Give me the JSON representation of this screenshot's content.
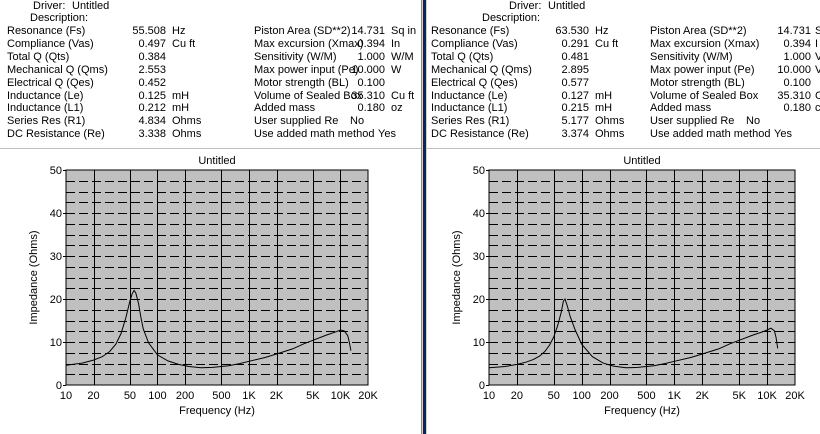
{
  "panes": [
    {
      "driver_label": "Driver:",
      "driver_value": "Untitled",
      "description_label": "Description:",
      "left_params": [
        {
          "label": "Resonance (Fs)",
          "value": "55.508",
          "unit": "Hz"
        },
        {
          "label": "Compliance (Vas)",
          "value": "0.497",
          "unit": "Cu ft"
        },
        {
          "label": "Total Q (Qts)",
          "value": "0.384",
          "unit": ""
        },
        {
          "label": "Mechanical Q (Qms)",
          "value": "2.553",
          "unit": ""
        },
        {
          "label": "Electrical Q (Qes)",
          "value": "0.452",
          "unit": ""
        },
        {
          "label": "Inductance (Le)",
          "value": "0.125",
          "unit": "mH"
        },
        {
          "label": "Inductance (L1)",
          "value": "0.212",
          "unit": "mH"
        },
        {
          "label": "Series Res (R1)",
          "value": "4.834",
          "unit": "Ohms"
        },
        {
          "label": "DC Resistance (Re)",
          "value": "3.338",
          "unit": "Ohms"
        }
      ],
      "right_params": [
        {
          "label": "Piston Area (SD**2)",
          "value": "14.731",
          "unit": "Sq in"
        },
        {
          "label": "Max excursion (Xmax)",
          "value": "0.394",
          "unit": "In"
        },
        {
          "label": "Sensitivity (W/M)",
          "value": "1.000",
          "unit": "W/M"
        },
        {
          "label": "Max power input (Pe)",
          "value": "10.000",
          "unit": "W"
        },
        {
          "label": "Motor strength (BL)",
          "value": "0.100",
          "unit": ""
        },
        {
          "label": "Volume of Sealed Box",
          "value": "35.310",
          "unit": "Cu ft"
        },
        {
          "label": "Added mass",
          "value": "0.180",
          "unit": "oz"
        },
        {
          "label": "User supplied Re",
          "value": "No",
          "unit": ""
        },
        {
          "label": "Use added math method",
          "value": "Yes",
          "unit": ""
        }
      ]
    },
    {
      "driver_label": "Driver:",
      "driver_value": "Untitled",
      "description_label": "Description:",
      "left_params": [
        {
          "label": "Resonance (Fs)",
          "value": "63.530",
          "unit": "Hz"
        },
        {
          "label": "Compliance (Vas)",
          "value": "0.291",
          "unit": "Cu ft"
        },
        {
          "label": "Total Q (Qts)",
          "value": "0.481",
          "unit": ""
        },
        {
          "label": "Mechanical Q (Qms)",
          "value": "2.895",
          "unit": ""
        },
        {
          "label": "Electrical Q (Qes)",
          "value": "0.577",
          "unit": ""
        },
        {
          "label": "Inductance (Le)",
          "value": "0.127",
          "unit": "mH"
        },
        {
          "label": "Inductance (L1)",
          "value": "0.215",
          "unit": "mH"
        },
        {
          "label": "Series Res (R1)",
          "value": "5.177",
          "unit": "Ohms"
        },
        {
          "label": "DC Resistance (Re)",
          "value": "3.374",
          "unit": "Ohms"
        }
      ],
      "right_params": [
        {
          "label": "Piston Area (SD**2)",
          "value": "14.731",
          "unit": "S"
        },
        {
          "label": "Max excursion (Xmax)",
          "value": "0.394",
          "unit": "I"
        },
        {
          "label": "Sensitivity (W/M)",
          "value": "1.000",
          "unit": "V"
        },
        {
          "label": "Max power input (Pe)",
          "value": "10.000",
          "unit": "V"
        },
        {
          "label": "Motor strength (BL)",
          "value": "0.100",
          "unit": ""
        },
        {
          "label": "Volume of Sealed Box",
          "value": "35.310",
          "unit": "C"
        },
        {
          "label": "Added mass",
          "value": "0.180",
          "unit": "c"
        },
        {
          "label": "User supplied Re",
          "value": "No",
          "unit": ""
        },
        {
          "label": "Use added math method",
          "value": "Yes",
          "unit": ""
        }
      ]
    }
  ],
  "colors": {
    "plot_background": "#c0c0c0",
    "grid_line": "#000000",
    "curve": "#000000",
    "divider_accent": "#0a246a"
  },
  "chart_data": [
    {
      "type": "line",
      "title": "Untitled",
      "xlabel": "Frequency (Hz)",
      "ylabel": "Impedance (Ohms)",
      "x_scale": "log",
      "xlim": [
        10,
        20000
      ],
      "ylim": [
        0,
        50
      ],
      "x_ticks": [
        10,
        20,
        50,
        100,
        200,
        500,
        1000,
        2000,
        5000,
        10000,
        20000
      ],
      "x_tick_labels": [
        "10",
        "20",
        "50",
        "100",
        "200",
        "500",
        "1K",
        "2K",
        "5K",
        "10K",
        "20K"
      ],
      "y_ticks": [
        0,
        10,
        20,
        30,
        40,
        50
      ],
      "y_tick_labels": [
        "0",
        "10",
        "20",
        "30",
        "40",
        "50"
      ],
      "grid": true,
      "series": [
        {
          "x": [
            10,
            15,
            20,
            25,
            30,
            35,
            40,
            45,
            50,
            53,
            55.5,
            58,
            62,
            66,
            70,
            80,
            100,
            130,
            170,
            220,
            300,
            400,
            500,
            600,
            800,
            1000,
            1500,
            2000,
            3000,
            4000,
            5000,
            7000,
            9000,
            10000,
            11000,
            12000,
            12500,
            13000
          ],
          "y": [
            4.6,
            5.1,
            5.8,
            6.6,
            7.8,
            9.5,
            12.0,
            15.6,
            19.5,
            21.3,
            22.0,
            21.4,
            19.0,
            15.6,
            13.0,
            9.8,
            7.0,
            5.6,
            4.8,
            4.3,
            4.0,
            4.1,
            4.3,
            4.5,
            5.0,
            5.5,
            6.4,
            7.2,
            8.4,
            9.6,
            10.4,
            11.6,
            12.4,
            12.8,
            12.6,
            11.5,
            10.0,
            8.0
          ]
        }
      ]
    },
    {
      "type": "line",
      "title": "Untitled",
      "xlabel": "Frequency (Hz)",
      "ylabel": "Impedance (Ohms)",
      "x_scale": "log",
      "xlim": [
        10,
        20000
      ],
      "ylim": [
        0,
        50
      ],
      "x_ticks": [
        10,
        20,
        50,
        100,
        200,
        500,
        1000,
        2000,
        5000,
        10000,
        20000
      ],
      "x_tick_labels": [
        "10",
        "20",
        "50",
        "100",
        "200",
        "500",
        "1K",
        "2K",
        "5K",
        "10K",
        "20K"
      ],
      "y_ticks": [
        0,
        10,
        20,
        30,
        40,
        50
      ],
      "y_tick_labels": [
        "0",
        "10",
        "20",
        "30",
        "40",
        "50"
      ],
      "grid": true,
      "series": [
        {
          "x": [
            10,
            15,
            20,
            25,
            30,
            35,
            40,
            45,
            50,
            55,
            60,
            63.5,
            66,
            70,
            75,
            85,
            100,
            130,
            170,
            220,
            300,
            400,
            500,
            600,
            800,
            1000,
            1500,
            2000,
            3000,
            4000,
            5000,
            7000,
            9000,
            10000,
            11000,
            12000,
            12500,
            13000
          ],
          "y": [
            4.0,
            4.3,
            4.8,
            5.3,
            5.9,
            6.7,
            7.8,
            9.3,
            11.2,
            13.8,
            16.8,
            19.5,
            20.0,
            18.4,
            16.0,
            12.8,
            9.5,
            6.6,
            5.1,
            4.4,
            4.0,
            4.1,
            4.3,
            4.5,
            5.0,
            5.5,
            6.4,
            7.2,
            8.4,
            9.6,
            10.4,
            11.6,
            12.4,
            12.8,
            13.2,
            12.6,
            11.0,
            8.5
          ]
        }
      ]
    }
  ]
}
